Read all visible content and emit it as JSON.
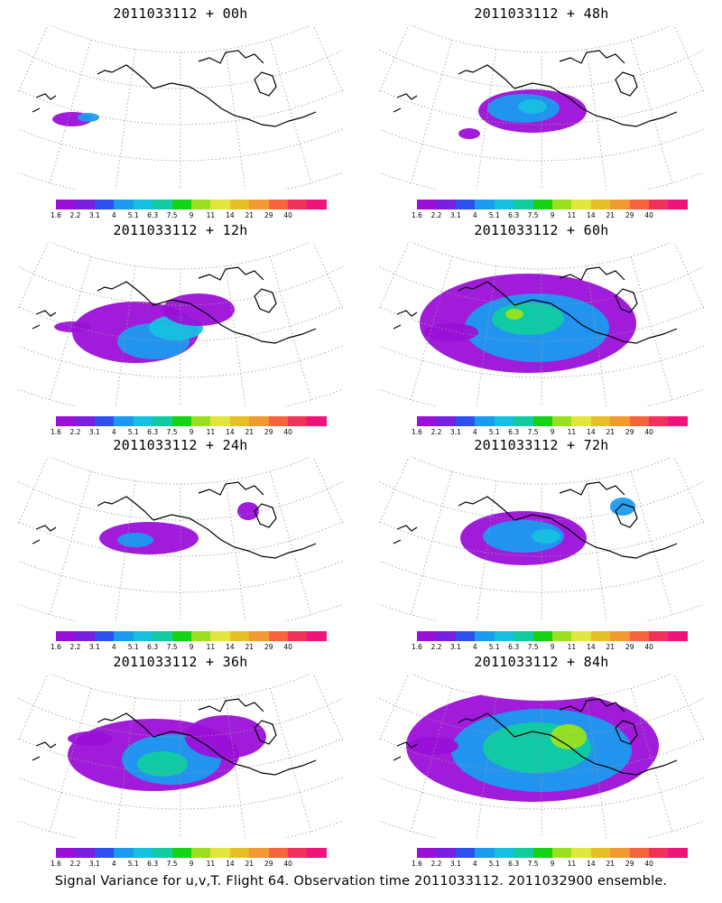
{
  "panels": [
    {
      "title": "2011033112 + 00h",
      "level": 0
    },
    {
      "title": "2011033112 + 48h",
      "level": 4
    },
    {
      "title": "2011033112 + 12h",
      "level": 1
    },
    {
      "title": "2011033112 + 60h",
      "level": 5
    },
    {
      "title": "2011033112 + 24h",
      "level": 2
    },
    {
      "title": "2011033112 + 72h",
      "level": 6
    },
    {
      "title": "2011033112 + 36h",
      "level": 3
    },
    {
      "title": "2011033112 + 84h",
      "level": 7
    }
  ],
  "colorbar": {
    "colors": [
      "#9b10d8",
      "#7a1ee0",
      "#2f50f0",
      "#1b9bf0",
      "#16c0e0",
      "#10cca0",
      "#14d214",
      "#9be01e",
      "#e0e63c",
      "#e6be28",
      "#f29a32",
      "#f5643c",
      "#f0325a",
      "#f0147a"
    ],
    "labels": [
      "1.6",
      "2.2",
      "3.1",
      "4",
      "5.1",
      "6.3",
      "7.5",
      "9",
      "11",
      "14",
      "21",
      "29",
      "40"
    ]
  },
  "footer": "Signal Variance for u,v,T. Flight 64. Observation time 2011033112. 2011032900 ensemble."
}
